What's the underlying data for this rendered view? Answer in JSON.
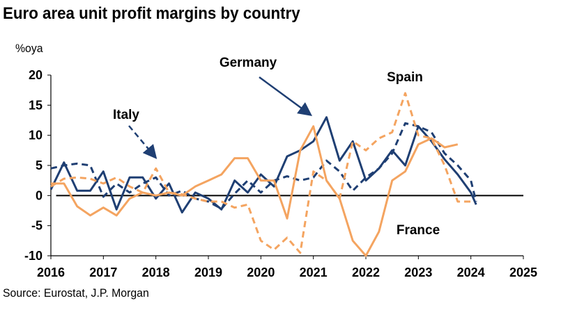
{
  "title": "Euro area unit profit margins by country",
  "units": "%oya",
  "source": "Source: Eurostat, J.P. Morgan",
  "chart_data": {
    "type": "line",
    "title": "Euro area unit profit margins by country",
    "ylabel": "%oya",
    "xlim": [
      2016,
      2025
    ],
    "ylim": [
      -10,
      20
    ],
    "x_ticks": [
      "2016",
      "2017",
      "2018",
      "2019",
      "2020",
      "2021",
      "2022",
      "2023",
      "2024",
      "2025"
    ],
    "y_ticks": [
      "20",
      "15",
      "10",
      "5",
      "0",
      "-5",
      "-10"
    ],
    "grid": false,
    "colors": {
      "navy": "#1f3f73",
      "orange": "#f4a460"
    },
    "annotations": [
      "Germany",
      "Italy",
      "Spain",
      "France"
    ],
    "series": [
      {
        "name": "Germany",
        "style": "solid",
        "color": "#1f3f73",
        "x": [
          2016.0,
          2016.25,
          2016.5,
          2016.75,
          2017.0,
          2017.25,
          2017.5,
          2017.75,
          2018.0,
          2018.25,
          2018.5,
          2018.75,
          2019.0,
          2019.25,
          2019.5,
          2019.75,
          2020.0,
          2020.25,
          2020.5,
          2020.75,
          2021.0,
          2021.25,
          2021.5,
          2021.75,
          2022.0,
          2022.25,
          2022.5,
          2022.75,
          2023.0,
          2023.25,
          2023.5,
          2023.75,
          2024.0,
          2024.1
        ],
        "y": [
          1.0,
          5.5,
          0.8,
          0.8,
          4.0,
          -2.3,
          3.0,
          3.0,
          -0.5,
          2.0,
          -2.8,
          0.5,
          -0.5,
          -2.3,
          2.5,
          0.5,
          3.5,
          1.5,
          6.5,
          7.5,
          9.0,
          13.0,
          5.8,
          9.0,
          2.5,
          4.5,
          7.5,
          5.0,
          11.5,
          9.0,
          6.0,
          3.5,
          0.5,
          -1.5
        ]
      },
      {
        "name": "Italy",
        "style": "dashed",
        "color": "#1f3f73",
        "x": [
          2016.0,
          2016.25,
          2016.5,
          2016.75,
          2017.0,
          2017.25,
          2017.5,
          2017.75,
          2018.0,
          2018.25,
          2018.5,
          2018.75,
          2019.0,
          2019.25,
          2019.5,
          2019.75,
          2020.0,
          2020.25,
          2020.5,
          2020.75,
          2021.0,
          2021.25,
          2021.5,
          2021.75,
          2022.0,
          2022.25,
          2022.5,
          2022.75,
          2023.0,
          2023.25,
          2023.5,
          2023.75,
          2024.0,
          2024.1
        ],
        "y": [
          4.5,
          5.0,
          5.3,
          5.0,
          -0.2,
          2.0,
          0.5,
          2.0,
          3.0,
          0.0,
          0.8,
          -0.5,
          -1.0,
          -2.2,
          0.3,
          2.5,
          0.5,
          2.5,
          3.2,
          2.5,
          3.0,
          5.8,
          4.0,
          0.8,
          3.0,
          4.5,
          7.0,
          12.0,
          11.5,
          10.5,
          7.0,
          5.0,
          2.5,
          -1.0
        ]
      },
      {
        "name": "Spain",
        "style": "dashed",
        "color": "#f4a460",
        "x": [
          2016.0,
          2016.25,
          2016.5,
          2016.75,
          2017.0,
          2017.25,
          2017.5,
          2017.75,
          2018.0,
          2018.25,
          2018.5,
          2018.75,
          2019.0,
          2019.25,
          2019.5,
          2019.75,
          2020.0,
          2020.25,
          2020.5,
          2020.75,
          2021.0,
          2021.25,
          2021.5,
          2021.75,
          2022.0,
          2022.25,
          2022.5,
          2022.75,
          2023.0,
          2023.25,
          2023.5,
          2023.75,
          2024.0
        ],
        "y": [
          1.5,
          2.8,
          3.0,
          2.8,
          2.0,
          3.0,
          1.5,
          0.5,
          4.5,
          0.5,
          0.2,
          -0.5,
          -1.0,
          -1.0,
          -2.0,
          -1.5,
          -7.5,
          -9.0,
          -7.0,
          -9.5,
          4.0,
          2.5,
          -0.5,
          9.0,
          7.5,
          9.5,
          10.5,
          17.0,
          10.0,
          9.5,
          5.0,
          -1.0,
          -1.0
        ]
      },
      {
        "name": "France",
        "style": "solid",
        "color": "#f4a460",
        "x": [
          2016.0,
          2016.25,
          2016.5,
          2016.75,
          2017.0,
          2017.25,
          2017.5,
          2017.75,
          2018.0,
          2018.25,
          2018.5,
          2018.75,
          2019.0,
          2019.25,
          2019.5,
          2019.75,
          2020.0,
          2020.25,
          2020.5,
          2020.75,
          2021.0,
          2021.25,
          2021.5,
          2021.75,
          2022.0,
          2022.25,
          2022.5,
          2022.75,
          2023.0,
          2023.25,
          2023.5,
          2023.75,
          2024.0
        ],
        "y": [
          2.0,
          2.0,
          -1.8,
          -3.3,
          -2.0,
          -3.3,
          -0.5,
          0.5,
          0.0,
          0.5,
          0.0,
          1.5,
          2.5,
          3.5,
          6.2,
          6.2,
          2.5,
          2.5,
          -3.8,
          7.5,
          11.5,
          2.5,
          -0.5,
          -7.5,
          -10.0,
          -6.0,
          2.5,
          4.0,
          8.5,
          9.5,
          8.0,
          8.5,
          null
        ]
      }
    ]
  }
}
